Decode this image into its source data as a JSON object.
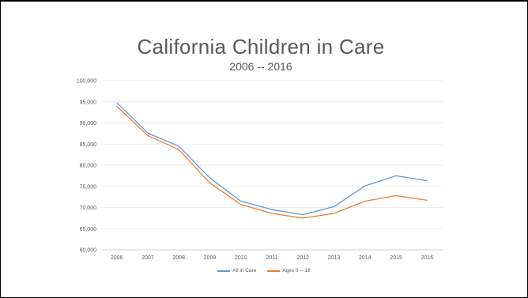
{
  "chart_data": {
    "type": "line",
    "title": "California Children in Care",
    "subtitle": "2006 -- 2016",
    "xlabel": "",
    "ylabel": "",
    "x": [
      "2006",
      "2007",
      "2008",
      "2009",
      "2010",
      "2011",
      "2012",
      "2013",
      "2014",
      "2015",
      "2016"
    ],
    "ylim": [
      60000,
      100000
    ],
    "yticks": [
      "60,000",
      "65,000",
      "70,000",
      "75,000",
      "80,000",
      "85,000",
      "90,000",
      "95,000",
      "100,000"
    ],
    "grid": true,
    "legend_position": "bottom",
    "series": [
      {
        "name": "All in Care",
        "color": "#5B9BD5",
        "values": [
          94800,
          87600,
          84500,
          77000,
          71500,
          69500,
          68300,
          70200,
          75100,
          77500,
          76300
        ]
      },
      {
        "name": "Ages 0 -- 18",
        "color": "#ED7D31",
        "values": [
          94000,
          87000,
          83700,
          75800,
          70700,
          68600,
          67500,
          68600,
          71500,
          72800,
          71700
        ]
      }
    ]
  }
}
